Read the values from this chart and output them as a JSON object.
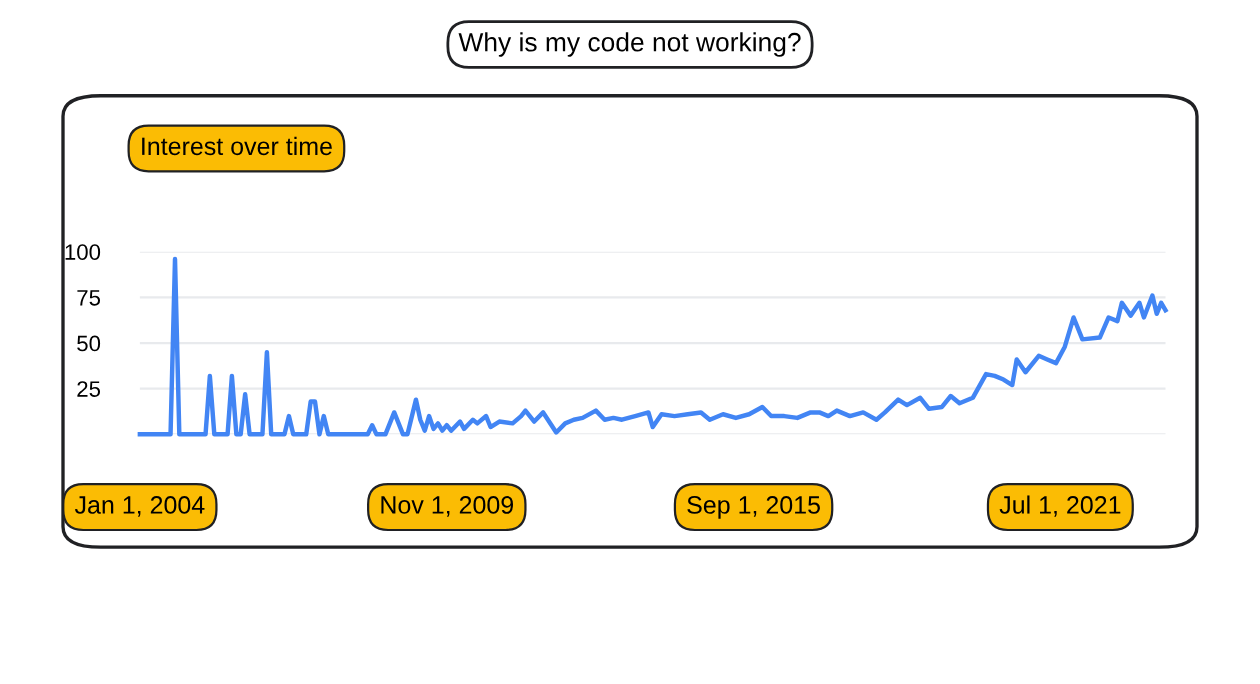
{
  "chart_data": {
    "type": "line",
    "title": "Why is my code not working?",
    "subtitle": "Interest over time",
    "x": [
      "2004-01",
      "2004-08",
      "2004-09",
      "2004-10",
      "2005-04",
      "2005-05",
      "2005-06",
      "2005-09",
      "2005-10",
      "2005-11",
      "2005-12",
      "2006-01",
      "2006-02",
      "2006-05",
      "2006-06",
      "2006-07",
      "2006-10",
      "2006-11",
      "2006-12",
      "2007-03",
      "2007-04",
      "2007-05",
      "2007-06",
      "2007-07",
      "2007-08",
      "2008-05",
      "2008-06",
      "2008-07",
      "2008-09",
      "2008-11",
      "2009-01",
      "2009-02",
      "2009-04",
      "2009-05",
      "2009-06",
      "2009-07",
      "2009-08",
      "2009-09",
      "2009-10",
      "2009-11",
      "2009-12",
      "2010-02",
      "2010-03",
      "2010-05",
      "2010-06",
      "2010-08",
      "2010-09",
      "2010-11",
      "2011-02",
      "2011-04",
      "2011-05",
      "2011-07",
      "2011-09",
      "2011-12",
      "2012-02",
      "2012-04",
      "2012-06",
      "2012-09",
      "2012-11",
      "2013-01",
      "2013-03",
      "2013-06",
      "2013-09",
      "2013-10",
      "2013-12",
      "2014-03",
      "2014-06",
      "2014-09",
      "2014-11",
      "2015-02",
      "2015-05",
      "2015-08",
      "2015-11",
      "2016-01",
      "2016-04",
      "2016-07",
      "2016-10",
      "2016-12",
      "2017-02",
      "2017-04",
      "2017-07",
      "2017-10",
      "2018-01",
      "2018-03",
      "2018-06",
      "2018-08",
      "2018-11",
      "2019-01",
      "2019-04",
      "2019-06",
      "2019-08",
      "2019-11",
      "2020-02",
      "2020-04",
      "2020-06",
      "2020-08",
      "2020-09",
      "2020-11",
      "2021-02",
      "2021-04",
      "2021-06",
      "2021-08",
      "2021-10",
      "2021-12",
      "2022-04",
      "2022-06",
      "2022-08",
      "2022-09",
      "2022-11",
      "2023-01",
      "2023-02",
      "2023-04",
      "2023-05",
      "2023-06",
      "2023-07"
    ],
    "series": [
      {
        "color": "#4285f4",
        "values": [
          0,
          0,
          96,
          0,
          0,
          32,
          0,
          0,
          32,
          0,
          0,
          22,
          0,
          0,
          45,
          0,
          0,
          10,
          0,
          0,
          18,
          18,
          0,
          10,
          0,
          0,
          5,
          0,
          0,
          12,
          0,
          0,
          19,
          8,
          2,
          10,
          3,
          6,
          2,
          5,
          2,
          7,
          3,
          8,
          6,
          10,
          4,
          7,
          6,
          10,
          13,
          7,
          12,
          1,
          6,
          8,
          9,
          13,
          8,
          9,
          8,
          10,
          12,
          4,
          11,
          10,
          11,
          12,
          8,
          11,
          9,
          11,
          15,
          10,
          10,
          9,
          12,
          12,
          10,
          13,
          10,
          12,
          8,
          12,
          19,
          16,
          20,
          14,
          15,
          21,
          17,
          20,
          33,
          32,
          30,
          27,
          41,
          34,
          43,
          41,
          39,
          48,
          64,
          52,
          53,
          64,
          62,
          72,
          65,
          72,
          64,
          76,
          66,
          72,
          68
        ]
      }
    ],
    "xlim": [
      "2004-01",
      "2023-07"
    ],
    "xticks": [
      {
        "value": "2004-01-01",
        "label": "Jan 1, 2004"
      },
      {
        "value": "2009-11-01",
        "label": "Nov 1, 2009"
      },
      {
        "value": "2015-09-01",
        "label": "Sep 1, 2015"
      },
      {
        "value": "2021-07-01",
        "label": "Jul 1, 2021"
      }
    ],
    "ylim": [
      0,
      100
    ],
    "yticks": [
      {
        "value": 0,
        "label": null
      },
      25,
      50,
      75,
      100
    ],
    "grid": "y",
    "marker": "none",
    "line_style": "solid"
  }
}
